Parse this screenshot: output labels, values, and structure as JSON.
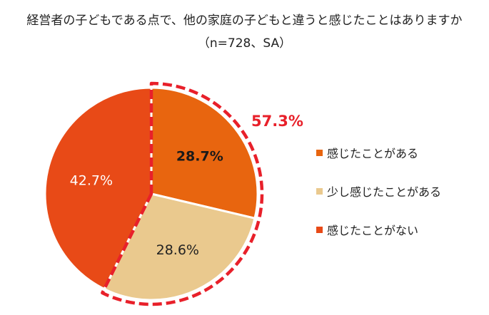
{
  "chart_data": {
    "type": "pie",
    "title": "経営者の子どもである点で、他の家庭の子どもと違うと感じたことはありますか",
    "subtitle": "（n=728、SA）",
    "slices": [
      {
        "name": "感じたことがある",
        "value": 28.7,
        "label": "28.7%",
        "color": "#E8650F",
        "label_color": "#1a1a1a",
        "bold": true
      },
      {
        "name": "少し感じたことがある",
        "value": 28.6,
        "label": "28.6%",
        "color": "#EAC98E",
        "label_color": "#222222",
        "bold": false
      },
      {
        "name": "感じたことがない",
        "value": 42.7,
        "label": "42.7%",
        "color": "#E84A17",
        "label_color": "#ffffff",
        "bold": false
      }
    ],
    "highlight": {
      "label": "57.3%",
      "color": "#E8202A",
      "slices": [
        0,
        1
      ]
    },
    "legend_position": "right"
  }
}
